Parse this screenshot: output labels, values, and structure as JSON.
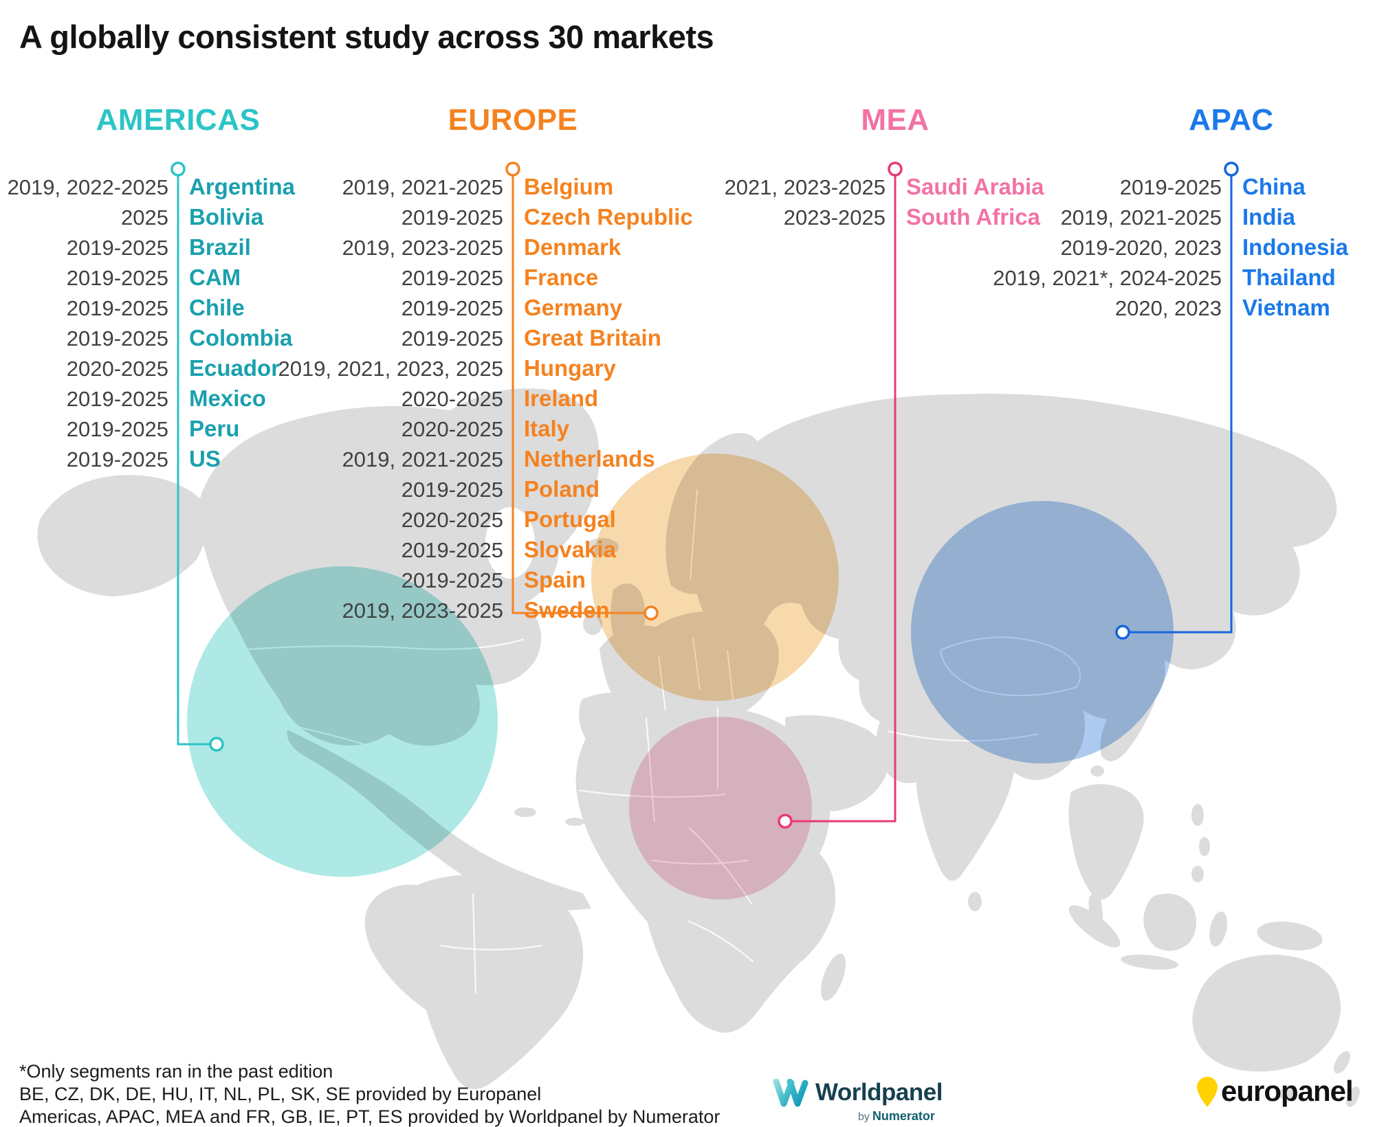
{
  "title": "A globally consistent study across 30 markets",
  "map": {
    "land_color": "#dcdcdc",
    "border_color": "#ffffff"
  },
  "regions": [
    {
      "name": "AMERICAS",
      "header_color": "#2bc4c6",
      "country_color": "#1aa0ae",
      "line_color": "#2bc4c6",
      "bubble_color": "#aee9e6",
      "markets": [
        {
          "years": "2019, 2022-2025",
          "country": "Argentina"
        },
        {
          "years": "2025",
          "country": "Bolivia"
        },
        {
          "years": "2019-2025",
          "country": "Brazil"
        },
        {
          "years": "2019-2025",
          "country": "CAM"
        },
        {
          "years": "2019-2025",
          "country": "Chile"
        },
        {
          "years": "2019-2025",
          "country": "Colombia"
        },
        {
          "years": "2020-2025",
          "country": "Ecuador"
        },
        {
          "years": "2019-2025",
          "country": "Mexico"
        },
        {
          "years": "2019-2025",
          "country": "Peru"
        },
        {
          "years": "2019-2025",
          "country": "US"
        }
      ]
    },
    {
      "name": "EUROPE",
      "header_color": "#f5821f",
      "country_color": "#f5821f",
      "line_color": "#f5821f",
      "bubble_color": "#f8d9ac",
      "markets": [
        {
          "years": "2019, 2021-2025",
          "country": "Belgium"
        },
        {
          "years": "2019-2025",
          "country": "Czech Republic"
        },
        {
          "years": "2019, 2023-2025",
          "country": "Denmark"
        },
        {
          "years": "2019-2025",
          "country": "France"
        },
        {
          "years": "2019-2025",
          "country": "Germany"
        },
        {
          "years": "2019-2025",
          "country": "Great Britain"
        },
        {
          "years": "2019, 2021, 2023, 2025",
          "country": "Hungary"
        },
        {
          "years": "2020-2025",
          "country": "Ireland"
        },
        {
          "years": "2020-2025",
          "country": "Italy"
        },
        {
          "years": "2019, 2021-2025",
          "country": "Netherlands"
        },
        {
          "years": "2019-2025",
          "country": "Poland"
        },
        {
          "years": "2020-2025",
          "country": "Portugal"
        },
        {
          "years": "2019-2025",
          "country": "Slovakia"
        },
        {
          "years": "2019-2025",
          "country": "Spain"
        },
        {
          "years": "2019, 2023-2025",
          "country": "Sweden"
        }
      ]
    },
    {
      "name": "MEA",
      "header_color": "#f272a5",
      "country_color": "#f272a5",
      "line_color": "#ea3a72",
      "bubble_color": "#f7cddd",
      "markets": [
        {
          "years": "2021, 2023-2025",
          "country": "Saudi Arabia"
        },
        {
          "years": "2023-2025",
          "country": "South Africa"
        }
      ]
    },
    {
      "name": "APAC",
      "header_color": "#1b79ea",
      "country_color": "#1b79ea",
      "line_color": "#1565dd",
      "bubble_color": "#adcbf1",
      "markets": [
        {
          "years": "2019-2025",
          "country": "China"
        },
        {
          "years": "2019, 2021-2025",
          "country": "India"
        },
        {
          "years": "2019-2020, 2023",
          "country": "Indonesia"
        },
        {
          "years": "2019, 2021*, 2024-2025",
          "country": "Thailand"
        },
        {
          "years": "2020, 2023",
          "country": "Vietnam"
        }
      ]
    }
  ],
  "footnotes": [
    "*Only segments ran in the past edition",
    "BE, CZ, DK, DE, HU, IT, NL, PL, SK, SE provided by Europanel",
    "Americas, APAC, MEA and FR, GB, IE, PT, ES provided by Worldpanel by Numerator"
  ],
  "logos": {
    "worldpanel_name": "Worldpanel",
    "worldpanel_by": "by",
    "worldpanel_numerator": "Numerator",
    "europanel_name": "europanel",
    "europanel_pin_color": "#ffd200"
  }
}
